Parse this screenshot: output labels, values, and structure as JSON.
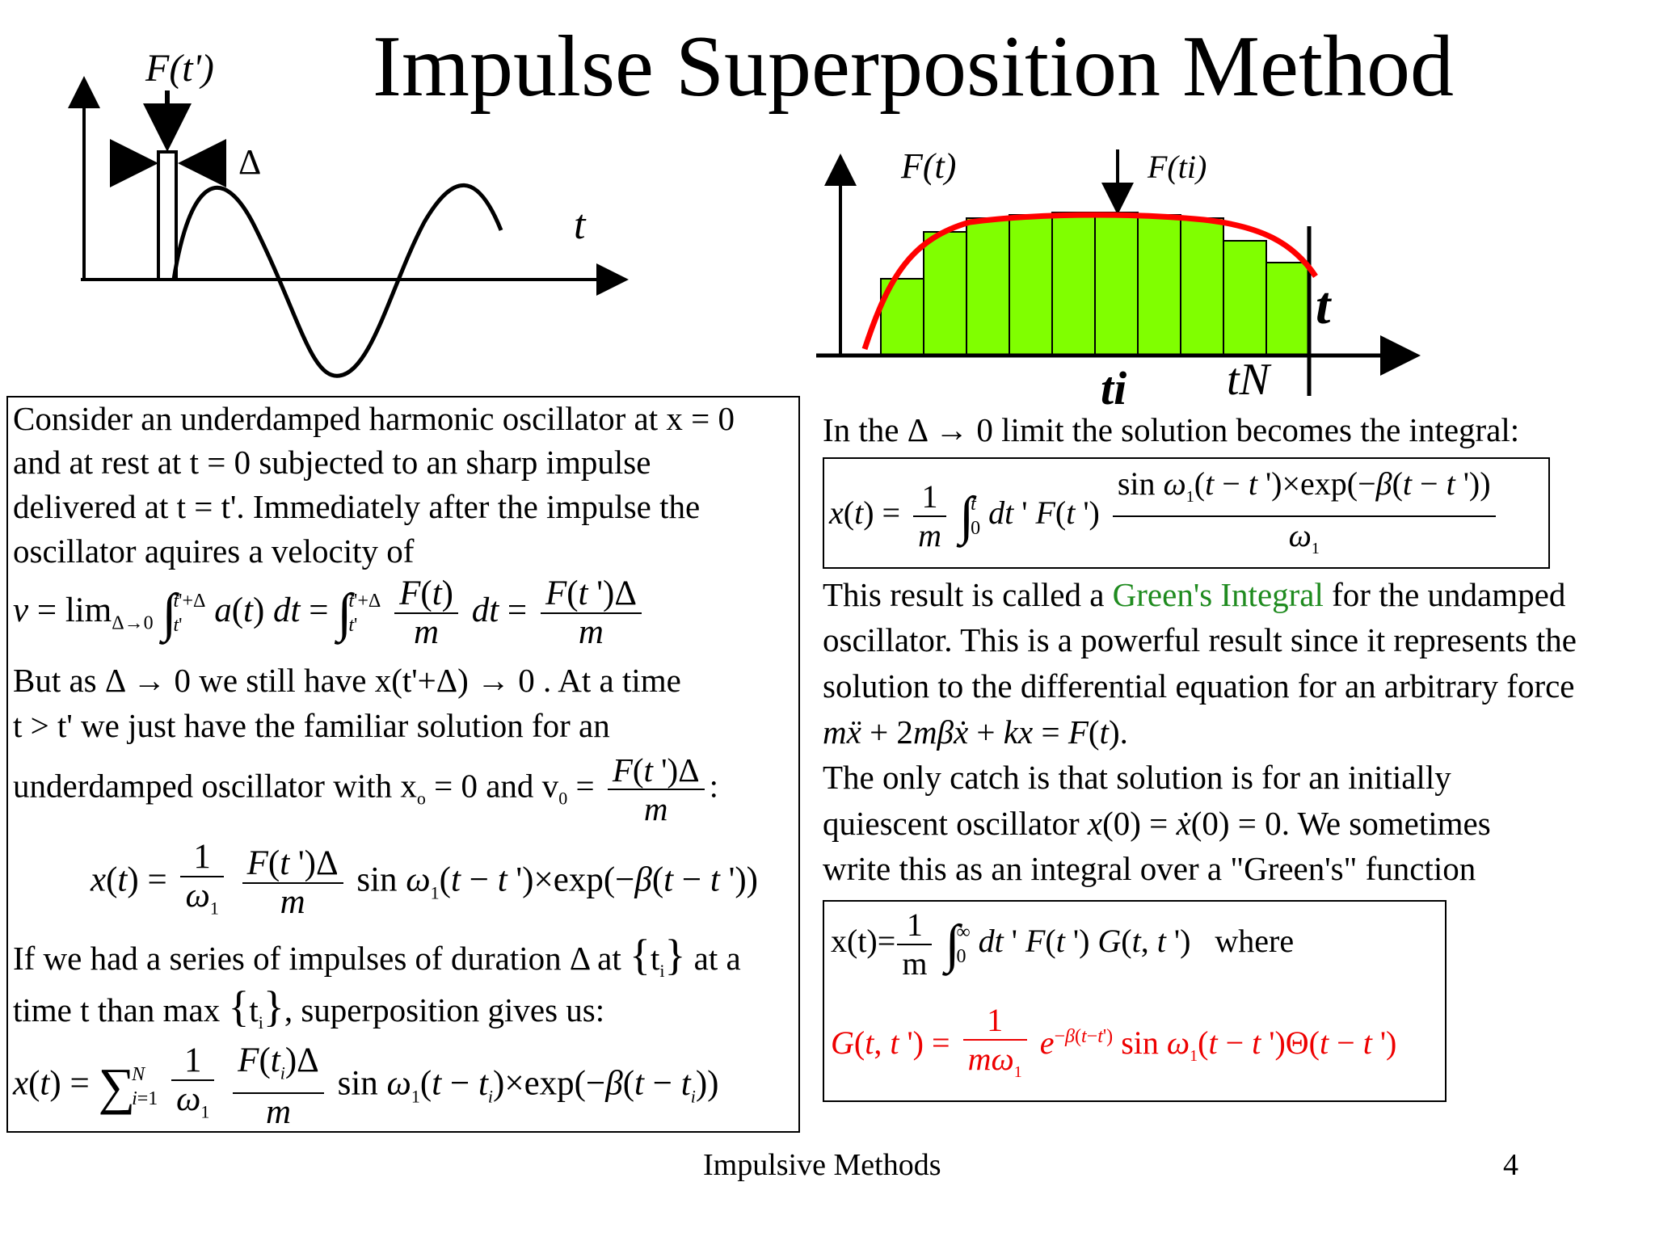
{
  "title": "Impulse Superposition Method",
  "fig_left": {
    "force_label": "F(t')",
    "width_label": "Δ",
    "axis_label": "t"
  },
  "fig_right": {
    "force_label": "F(t)",
    "sample_label": "F(ti)",
    "axis_label": "t",
    "ti_label": "ti",
    "tN_label": "tN"
  },
  "left_box": {
    "l1": "Consider an underdamped harmonic oscillator at x = 0",
    "l2": "and at rest at t = 0 subjected to an sharp impulse",
    "l3": "delivered at t = t'. Immediately after the impulse the",
    "l4": "oscillator aquires a velocity of",
    "l6": "But as Δ → 0  we still have x(t'+Δ) → 0 . At a time",
    "l7": "t > t'  we just have the familiar solution for an",
    "l8": "underdamped oscillator with x",
    "l8b": " = 0 and v",
    "l10": "If we had a series of impulses of duration Δ at",
    "l10b": "at a",
    "l11": "time t than max",
    "l11b": ", superposition gives us:"
  },
  "right_text": {
    "intro": "In the Δ → 0 limit the solution becomes the  integral:",
    "p1a": "This result is called a ",
    "p1_green": "Green's Integral",
    "p1b": " for the undamped",
    "p2": "oscillator. This is a powerful result since it represents the",
    "p3": "solution to the differential equation for an arbitrary force",
    "p5": "The only catch is that solution is for an initially",
    "p6a": "quiescent oscillator ",
    "p6b": ". We sometimes",
    "p7": "write this as an integral over a  \"Green's\" function",
    "where": "where"
  },
  "footer": {
    "label": "Impulsive Methods",
    "page": "4"
  },
  "colors": {
    "bar_fill": "#80ff00",
    "curve": "#ff0000",
    "green_text": "#1f8b1f",
    "red_text": "#e00000"
  }
}
